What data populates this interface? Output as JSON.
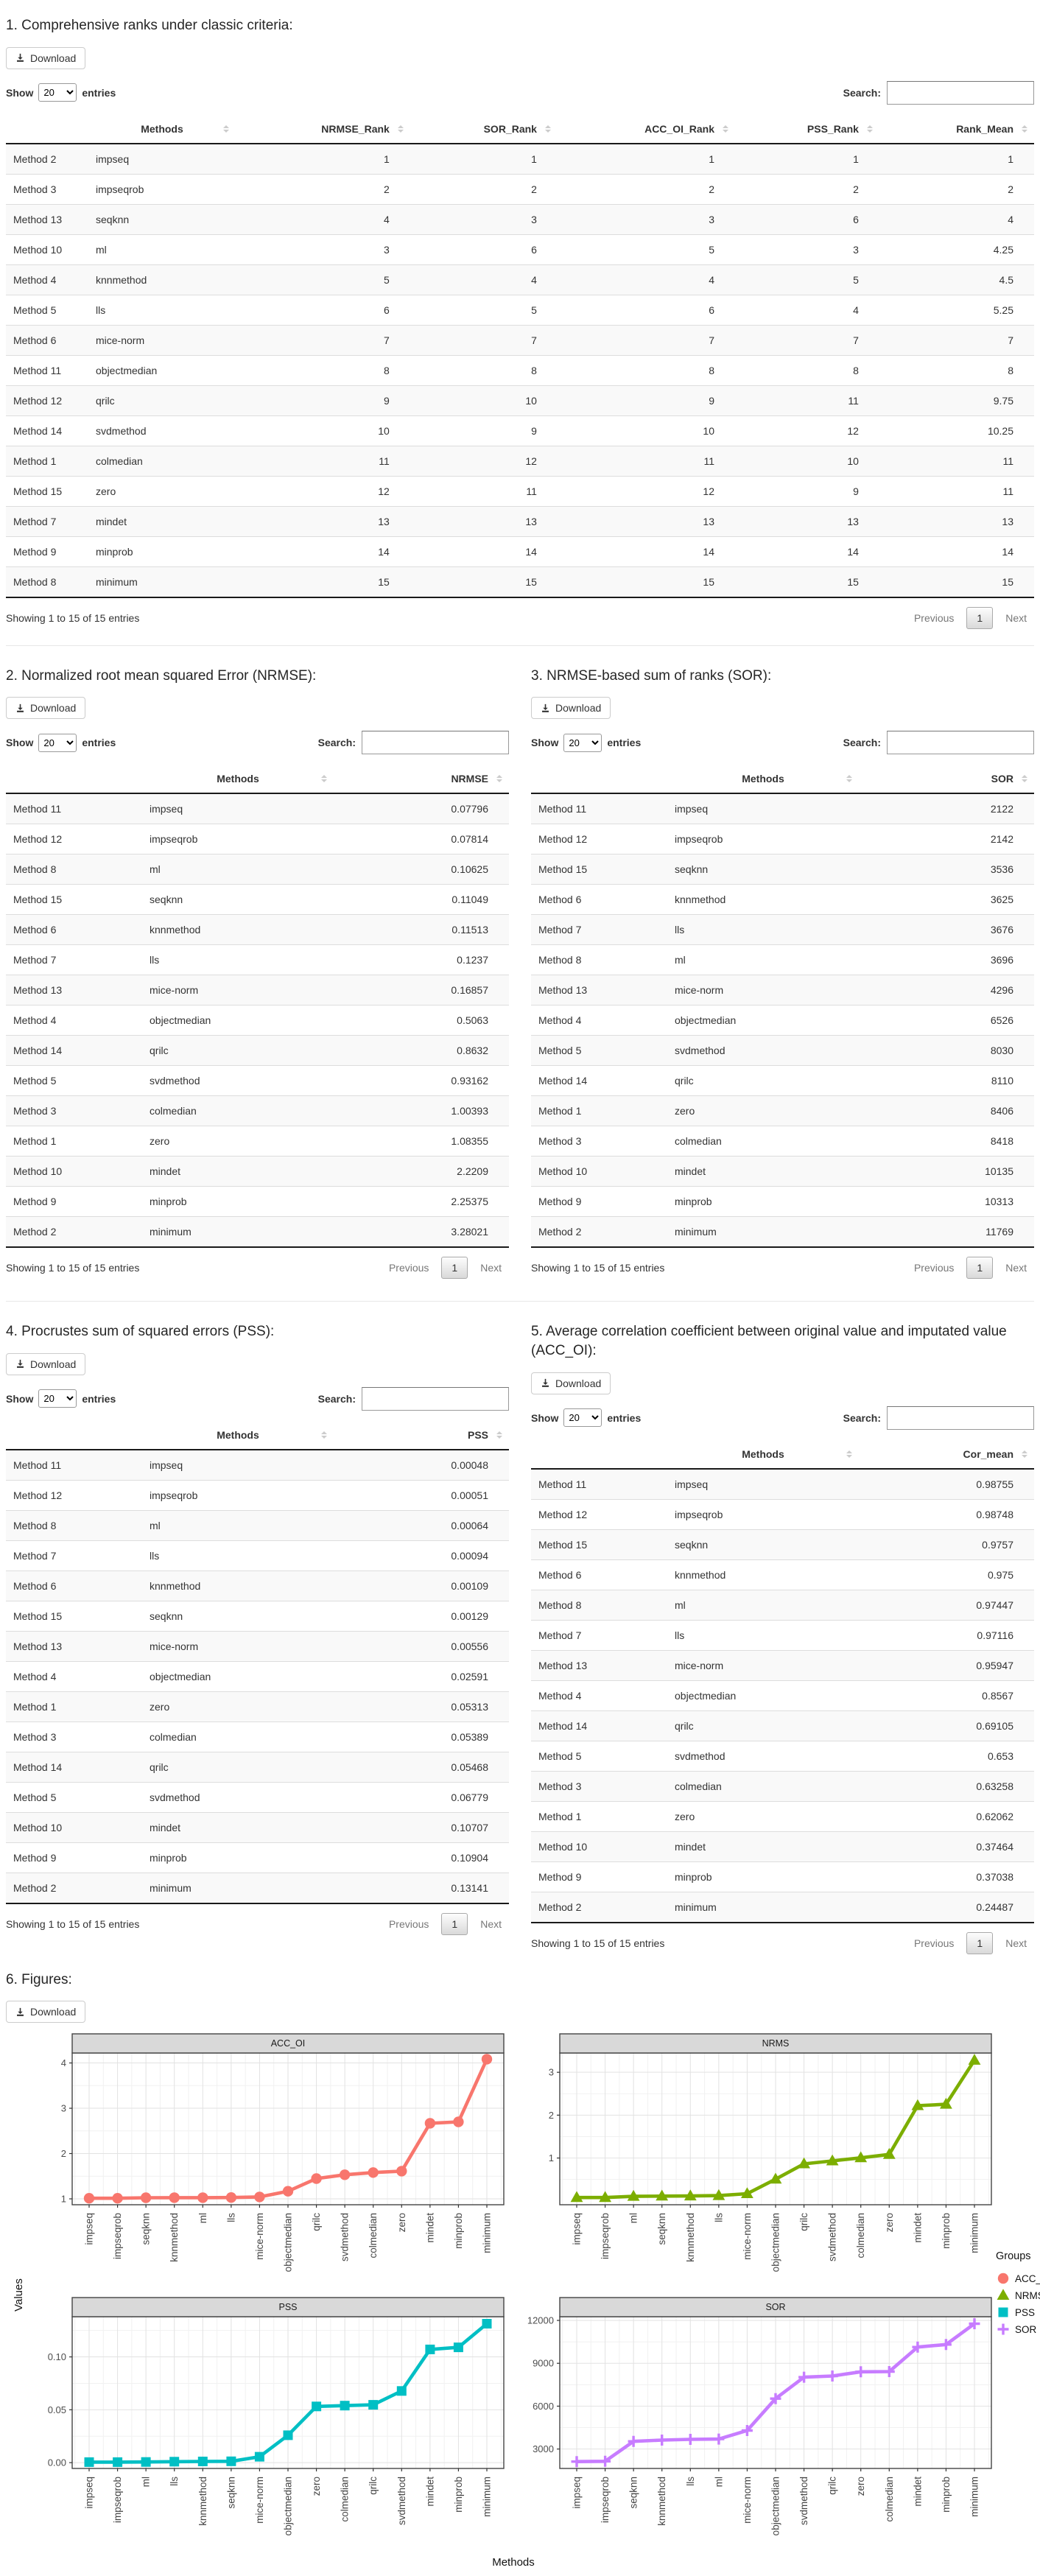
{
  "controls": {
    "download": "Download",
    "show": "Show",
    "page_size": "20",
    "entries": "entries",
    "search": "Search:",
    "search_value": "",
    "footer": "Showing 1 to 15 of 15 entries",
    "previous": "Previous",
    "page": "1",
    "next": "Next"
  },
  "tables": [
    {
      "section_title": "1. Comprehensive ranks under classic criteria:",
      "columns": [
        "",
        "Methods",
        "NRMSE_Rank",
        "SOR_Rank",
        "ACC_OI_Rank",
        "PSS_Rank",
        "Rank_Mean"
      ],
      "rows": [
        [
          "Method 2",
          "impseq",
          "1",
          "1",
          "1",
          "1",
          "1"
        ],
        [
          "Method 3",
          "impseqrob",
          "2",
          "2",
          "2",
          "2",
          "2"
        ],
        [
          "Method 13",
          "seqknn",
          "4",
          "3",
          "3",
          "6",
          "4"
        ],
        [
          "Method 10",
          "ml",
          "3",
          "6",
          "5",
          "3",
          "4.25"
        ],
        [
          "Method 4",
          "knnmethod",
          "5",
          "4",
          "4",
          "5",
          "4.5"
        ],
        [
          "Method 5",
          "lls",
          "6",
          "5",
          "6",
          "4",
          "5.25"
        ],
        [
          "Method 6",
          "mice-norm",
          "7",
          "7",
          "7",
          "7",
          "7"
        ],
        [
          "Method 11",
          "objectmedian",
          "8",
          "8",
          "8",
          "8",
          "8"
        ],
        [
          "Method 12",
          "qrilc",
          "9",
          "10",
          "9",
          "11",
          "9.75"
        ],
        [
          "Method 14",
          "svdmethod",
          "10",
          "9",
          "10",
          "12",
          "10.25"
        ],
        [
          "Method 1",
          "colmedian",
          "11",
          "12",
          "11",
          "10",
          "11"
        ],
        [
          "Method 15",
          "zero",
          "12",
          "11",
          "12",
          "9",
          "11"
        ],
        [
          "Method 7",
          "mindet",
          "13",
          "13",
          "13",
          "13",
          "13"
        ],
        [
          "Method 9",
          "minprob",
          "14",
          "14",
          "14",
          "14",
          "14"
        ],
        [
          "Method 8",
          "minimum",
          "15",
          "15",
          "15",
          "15",
          "15"
        ]
      ]
    },
    {
      "section_title": "2. Normalized root mean squared Error (NRMSE):",
      "columns": [
        "",
        "Methods",
        "NRMSE"
      ],
      "rows": [
        [
          "Method 11",
          "impseq",
          "0.07796"
        ],
        [
          "Method 12",
          "impseqrob",
          "0.07814"
        ],
        [
          "Method 8",
          "ml",
          "0.10625"
        ],
        [
          "Method 15",
          "seqknn",
          "0.11049"
        ],
        [
          "Method 6",
          "knnmethod",
          "0.11513"
        ],
        [
          "Method 7",
          "lls",
          "0.1237"
        ],
        [
          "Method 13",
          "mice-norm",
          "0.16857"
        ],
        [
          "Method 4",
          "objectmedian",
          "0.5063"
        ],
        [
          "Method 14",
          "qrilc",
          "0.8632"
        ],
        [
          "Method 5",
          "svdmethod",
          "0.93162"
        ],
        [
          "Method 3",
          "colmedian",
          "1.00393"
        ],
        [
          "Method 1",
          "zero",
          "1.08355"
        ],
        [
          "Method 10",
          "mindet",
          "2.2209"
        ],
        [
          "Method 9",
          "minprob",
          "2.25375"
        ],
        [
          "Method 2",
          "minimum",
          "3.28021"
        ]
      ]
    },
    {
      "section_title": "3. NRMSE-based sum of ranks (SOR):",
      "columns": [
        "",
        "Methods",
        "SOR"
      ],
      "rows": [
        [
          "Method 11",
          "impseq",
          "2122"
        ],
        [
          "Method 12",
          "impseqrob",
          "2142"
        ],
        [
          "Method 15",
          "seqknn",
          "3536"
        ],
        [
          "Method 6",
          "knnmethod",
          "3625"
        ],
        [
          "Method 7",
          "lls",
          "3676"
        ],
        [
          "Method 8",
          "ml",
          "3696"
        ],
        [
          "Method 13",
          "mice-norm",
          "4296"
        ],
        [
          "Method 4",
          "objectmedian",
          "6526"
        ],
        [
          "Method 5",
          "svdmethod",
          "8030"
        ],
        [
          "Method 14",
          "qrilc",
          "8110"
        ],
        [
          "Method 1",
          "zero",
          "8406"
        ],
        [
          "Method 3",
          "colmedian",
          "8418"
        ],
        [
          "Method 10",
          "mindet",
          "10135"
        ],
        [
          "Method 9",
          "minprob",
          "10313"
        ],
        [
          "Method 2",
          "minimum",
          "11769"
        ]
      ]
    },
    {
      "section_title": "4. Procrustes sum of squared errors (PSS):",
      "columns": [
        "",
        "Methods",
        "PSS"
      ],
      "rows": [
        [
          "Method 11",
          "impseq",
          "0.00048"
        ],
        [
          "Method 12",
          "impseqrob",
          "0.00051"
        ],
        [
          "Method 8",
          "ml",
          "0.00064"
        ],
        [
          "Method 7",
          "lls",
          "0.00094"
        ],
        [
          "Method 6",
          "knnmethod",
          "0.00109"
        ],
        [
          "Method 15",
          "seqknn",
          "0.00129"
        ],
        [
          "Method 13",
          "mice-norm",
          "0.00556"
        ],
        [
          "Method 4",
          "objectmedian",
          "0.02591"
        ],
        [
          "Method 1",
          "zero",
          "0.05313"
        ],
        [
          "Method 3",
          "colmedian",
          "0.05389"
        ],
        [
          "Method 14",
          "qrilc",
          "0.05468"
        ],
        [
          "Method 5",
          "svdmethod",
          "0.06779"
        ],
        [
          "Method 10",
          "mindet",
          "0.10707"
        ],
        [
          "Method 9",
          "minprob",
          "0.10904"
        ],
        [
          "Method 2",
          "minimum",
          "0.13141"
        ]
      ]
    },
    {
      "section_title": "5. Average correlation coefficient between original value and imputated value (ACC_OI):",
      "columns": [
        "",
        "Methods",
        "Cor_mean"
      ],
      "rows": [
        [
          "Method 11",
          "impseq",
          "0.98755"
        ],
        [
          "Method 12",
          "impseqrob",
          "0.98748"
        ],
        [
          "Method 15",
          "seqknn",
          "0.9757"
        ],
        [
          "Method 6",
          "knnmethod",
          "0.975"
        ],
        [
          "Method 8",
          "ml",
          "0.97447"
        ],
        [
          "Method 7",
          "lls",
          "0.97116"
        ],
        [
          "Method 13",
          "mice-norm",
          "0.95947"
        ],
        [
          "Method 4",
          "objectmedian",
          "0.8567"
        ],
        [
          "Method 14",
          "qrilc",
          "0.69105"
        ],
        [
          "Method 5",
          "svdmethod",
          "0.653"
        ],
        [
          "Method 3",
          "colmedian",
          "0.63258"
        ],
        [
          "Method 1",
          "zero",
          "0.62062"
        ],
        [
          "Method 10",
          "mindet",
          "0.37464"
        ],
        [
          "Method 9",
          "minprob",
          "0.37038"
        ],
        [
          "Method 2",
          "minimum",
          "0.24487"
        ]
      ]
    }
  ],
  "figures": {
    "section_title": "6. Figures:",
    "ylabel": "Values",
    "xlabel": "Methods",
    "legend_title": "Groups"
  },
  "chart_data": [
    {
      "type": "line",
      "title": "ACC_OI",
      "color": "#F8766D",
      "marker": "circle",
      "categories": [
        "impseq",
        "impseqrob",
        "seqknn",
        "knnmethod",
        "ml",
        "lls",
        "mice-norm",
        "objectmedian",
        "qrilc",
        "svdmethod",
        "colmedian",
        "zero",
        "mindet",
        "minprob",
        "minimum"
      ],
      "values": [
        1.0126,
        1.0127,
        1.0249,
        1.0256,
        1.0262,
        1.0297,
        1.0422,
        1.1673,
        1.4471,
        1.5314,
        1.5808,
        1.6113,
        2.6692,
        2.7,
        4.0838
      ],
      "yticks": [
        1,
        2,
        3,
        4
      ],
      "ytick_labels": [
        "1",
        "2",
        "3",
        "4"
      ],
      "ylim": [
        0.87,
        4.22
      ],
      "grid": true,
      "legend_position": "right"
    },
    {
      "type": "line",
      "title": "NRMS",
      "color": "#7CAE00",
      "marker": "triangle",
      "categories": [
        "impseq",
        "impseqrob",
        "ml",
        "seqknn",
        "knnmethod",
        "lls",
        "mice-norm",
        "objectmedian",
        "qrilc",
        "svdmethod",
        "colmedian",
        "zero",
        "mindet",
        "minprob",
        "minimum"
      ],
      "values": [
        0.07796,
        0.07814,
        0.10625,
        0.11049,
        0.11513,
        0.1237,
        0.16857,
        0.5063,
        0.8632,
        0.93162,
        1.00393,
        1.08355,
        2.2209,
        2.25375,
        3.28021
      ],
      "yticks": [
        1,
        2,
        3
      ],
      "ytick_labels": [
        "1",
        "2",
        "3"
      ],
      "ylim": [
        -0.09,
        3.45
      ],
      "grid": true,
      "legend_position": "right"
    },
    {
      "type": "line",
      "title": "PSS",
      "color": "#00BFC4",
      "marker": "square",
      "categories": [
        "impseq",
        "impseqrob",
        "ml",
        "lls",
        "knnmethod",
        "seqknn",
        "mice-norm",
        "objectmedian",
        "zero",
        "colmedian",
        "qrilc",
        "svdmethod",
        "mindet",
        "minprob",
        "minimum"
      ],
      "values": [
        0.00048,
        0.00051,
        0.00064,
        0.00094,
        0.00109,
        0.00129,
        0.00556,
        0.02591,
        0.05313,
        0.05389,
        0.05468,
        0.06779,
        0.10707,
        0.10904,
        0.13141
      ],
      "yticks": [
        0,
        0.05,
        0.1
      ],
      "ytick_labels": [
        "0.00",
        "0.05",
        "0.10"
      ],
      "ylim": [
        -0.0055,
        0.138
      ],
      "grid": true,
      "legend_position": "right"
    },
    {
      "type": "line",
      "title": "SOR",
      "color": "#C77CFF",
      "marker": "plus",
      "categories": [
        "impseq",
        "impseqrob",
        "seqknn",
        "knnmethod",
        "lls",
        "ml",
        "mice-norm",
        "objectmedian",
        "svdmethod",
        "qrilc",
        "zero",
        "colmedian",
        "mindet",
        "minprob",
        "minimum"
      ],
      "values": [
        2122,
        2142,
        3536,
        3625,
        3676,
        3696,
        4296,
        6526,
        8030,
        8110,
        8406,
        8418,
        10135,
        10313,
        11769
      ],
      "yticks": [
        3000,
        6000,
        9000,
        12000
      ],
      "ytick_labels": [
        "3000",
        "6000",
        "9000",
        "12000"
      ],
      "ylim": [
        1640,
        12260
      ],
      "grid": true,
      "legend_position": "right"
    }
  ]
}
